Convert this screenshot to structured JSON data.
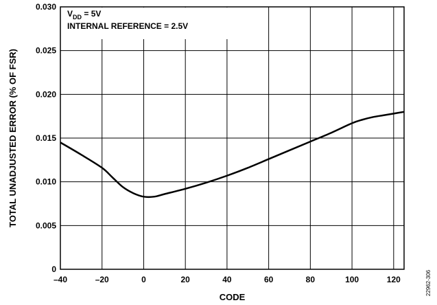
{
  "chart_data": {
    "type": "line",
    "title": "",
    "xlabel": "CODE",
    "ylabel": "TOTAL UNADJUSTED ERROR (% OF FSR)",
    "xlim": [
      -40,
      125
    ],
    "ylim": [
      0,
      0.03
    ],
    "x_ticks": [
      -40,
      -20,
      0,
      20,
      40,
      60,
      80,
      100,
      120
    ],
    "x_tick_labels": [
      "–40",
      "–20",
      "0",
      "20",
      "40",
      "60",
      "80",
      "100",
      "120"
    ],
    "y_ticks": [
      0,
      0.005,
      0.01,
      0.015,
      0.02,
      0.025,
      0.03
    ],
    "y_tick_labels": [
      "0",
      "0.005",
      "0.010",
      "0.015",
      "0.020",
      "0.025",
      "0.030"
    ],
    "grid": true,
    "annotations": {
      "vdd_prefix": "V",
      "vdd_subscript": "DD",
      "vdd_suffix": " = 5V",
      "reference": "INTERNAL REFERENCE = 2.5V"
    },
    "figure_id": "22962-306",
    "series": [
      {
        "x": [
          -40,
          -30,
          -20,
          -15,
          -10,
          -5,
          0,
          5,
          10,
          20,
          30,
          40,
          50,
          60,
          70,
          80,
          90,
          100,
          105,
          110,
          115,
          120,
          125
        ],
        "y": [
          0.0145,
          0.0131,
          0.0116,
          0.0105,
          0.0094,
          0.0087,
          0.0083,
          0.0083,
          0.0086,
          0.0092,
          0.0099,
          0.0107,
          0.0116,
          0.0126,
          0.0136,
          0.0146,
          0.0156,
          0.0167,
          0.0171,
          0.0174,
          0.0176,
          0.0178,
          0.018
        ]
      }
    ]
  }
}
